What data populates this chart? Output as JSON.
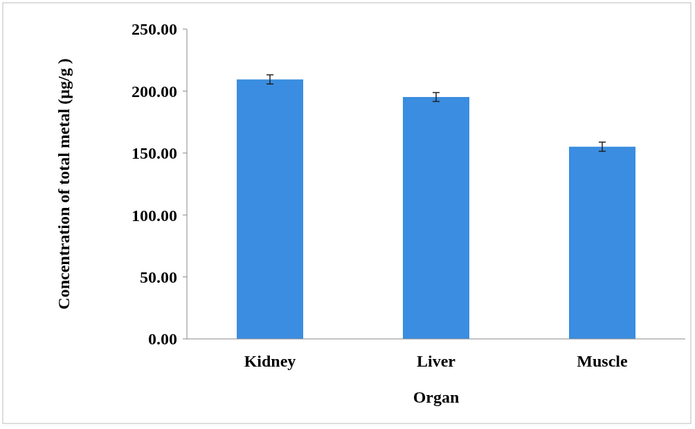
{
  "chart_data": {
    "type": "bar",
    "xlabel": "Organ",
    "ylabel": "Concentration of total metal (µg/g )",
    "categories": [
      "Kidney",
      "Liver",
      "Muscle"
    ],
    "values": [
      209.4,
      195.2,
      155.1
    ],
    "errors": [
      3.7,
      3.6,
      3.7
    ],
    "color": "#3a8de0",
    "ylim": [
      0,
      250
    ],
    "yticks": [
      {
        "value": 0,
        "label": "0.00"
      },
      {
        "value": 50,
        "label": "50.00"
      },
      {
        "value": 100,
        "label": "100.00"
      },
      {
        "value": 150,
        "label": "150.00"
      },
      {
        "value": 200,
        "label": "200.00"
      },
      {
        "value": 250,
        "label": "250.00"
      }
    ],
    "grid": false
  }
}
